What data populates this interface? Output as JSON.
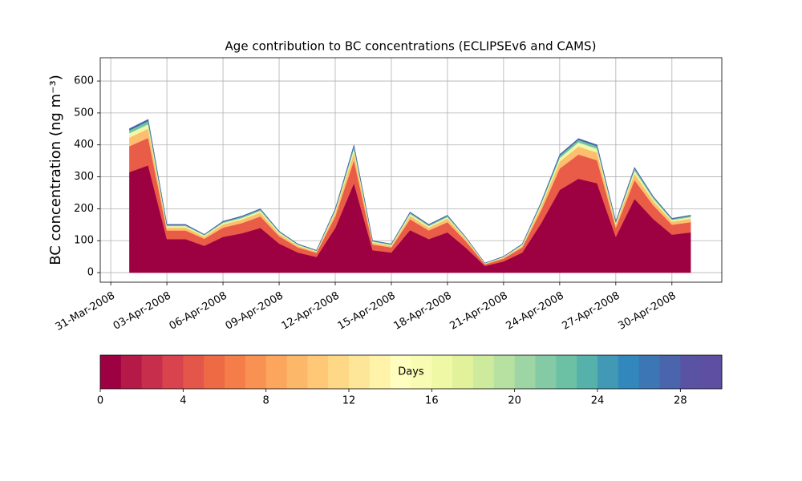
{
  "chart_data": {
    "type": "stacked_area",
    "title": "Age contribution to BC concentrations (ECLIPSEv6 and CAMS)",
    "y_label": "BC concentration (ng m⁻³)",
    "x": [
      "01-Apr-2008",
      "02-Apr-2008",
      "03-Apr-2008",
      "04-Apr-2008",
      "05-Apr-2008",
      "06-Apr-2008",
      "07-Apr-2008",
      "08-Apr-2008",
      "09-Apr-2008",
      "10-Apr-2008",
      "11-Apr-2008",
      "12-Apr-2008",
      "13-Apr-2008",
      "14-Apr-2008",
      "15-Apr-2008",
      "16-Apr-2008",
      "17-Apr-2008",
      "18-Apr-2008",
      "19-Apr-2008",
      "20-Apr-2008",
      "21-Apr-2008",
      "22-Apr-2008",
      "23-Apr-2008",
      "24-Apr-2008",
      "25-Apr-2008",
      "26-Apr-2008",
      "27-Apr-2008",
      "28-Apr-2008",
      "29-Apr-2008",
      "30-Apr-2008",
      "01-May-2008"
    ],
    "series": [
      {
        "color": "#9e0142",
        "values": [
          315,
          336,
          105,
          105,
          84,
          112,
          123,
          140,
          91,
          63,
          49,
          140,
          280,
          70,
          63,
          133,
          105,
          126,
          77,
          21,
          35,
          63,
          154,
          259,
          294,
          280,
          112,
          231,
          168,
          119,
          126
        ]
      },
      {
        "color": "#e95c47",
        "values": [
          81,
          86,
          27,
          27,
          22,
          29,
          32,
          36,
          23,
          16,
          13,
          36,
          72,
          18,
          16,
          34,
          27,
          32,
          20,
          5,
          9,
          16,
          40,
          67,
          76,
          72,
          29,
          59,
          43,
          31,
          32
        ]
      },
      {
        "color": "#fdbf6f",
        "values": [
          27,
          29,
          9,
          9,
          7,
          10,
          11,
          12,
          8,
          5,
          4,
          12,
          24,
          6,
          5,
          11,
          9,
          11,
          7,
          2,
          3,
          5,
          13,
          22,
          25,
          24,
          10,
          20,
          14,
          10,
          11
        ]
      },
      {
        "color": "#eef8a8",
        "values": [
          14,
          14,
          5,
          5,
          4,
          5,
          5,
          6,
          4,
          3,
          2,
          6,
          12,
          3,
          3,
          6,
          5,
          5,
          3,
          1,
          2,
          3,
          7,
          11,
          13,
          12,
          5,
          10,
          7,
          5,
          5
        ]
      },
      {
        "color": "#6cc4a4",
        "values": [
          9,
          10,
          3,
          3,
          2,
          3,
          4,
          4,
          3,
          2,
          1,
          4,
          8,
          2,
          2,
          4,
          3,
          4,
          2,
          1,
          1,
          2,
          4,
          7,
          8,
          8,
          3,
          7,
          5,
          3,
          4
        ]
      },
      {
        "color": "#4a5fa8",
        "values": [
          5,
          5,
          2,
          2,
          1,
          2,
          2,
          2,
          1,
          1,
          1,
          2,
          4,
          1,
          1,
          2,
          2,
          2,
          1,
          0,
          1,
          1,
          2,
          4,
          4,
          4,
          2,
          3,
          2,
          2,
          2
        ]
      }
    ],
    "xlim": [
      "30-Mar-2008 10:30",
      "02-May-2008 16:00"
    ],
    "xticks": [
      "31-Mar-2008",
      "03-Apr-2008",
      "06-Apr-2008",
      "09-Apr-2008",
      "12-Apr-2008",
      "15-Apr-2008",
      "18-Apr-2008",
      "21-Apr-2008",
      "24-Apr-2008",
      "27-Apr-2008",
      "30-Apr-2008"
    ],
    "ylim": [
      -30,
      673
    ],
    "yticks": [
      0,
      100,
      200,
      300,
      400,
      500,
      600
    ],
    "grid": true,
    "colorbar": {
      "label": "Days",
      "lim": [
        0,
        30
      ],
      "ticks": [
        0,
        4,
        8,
        12,
        16,
        20,
        24,
        28
      ],
      "colors": [
        "#9e0142",
        "#b41947",
        "#c72e4b",
        "#d8434e",
        "#e4564a",
        "#ee6a45",
        "#f57d4a",
        "#f99153",
        "#fca55d",
        "#fdb768",
        "#fec877",
        "#fed887",
        "#fee698",
        "#fff3a9",
        "#fffebe",
        "#f8fcb3",
        "#eef8a5",
        "#e1f29b",
        "#cdea9d",
        "#b7e1a1",
        "#9dd6a4",
        "#84cba5",
        "#6cc1a5",
        "#56b1aa",
        "#4199b5",
        "#3288bd",
        "#3c76b4",
        "#4a65ac",
        "#5a52a3",
        "#5e4fa2"
      ]
    }
  }
}
